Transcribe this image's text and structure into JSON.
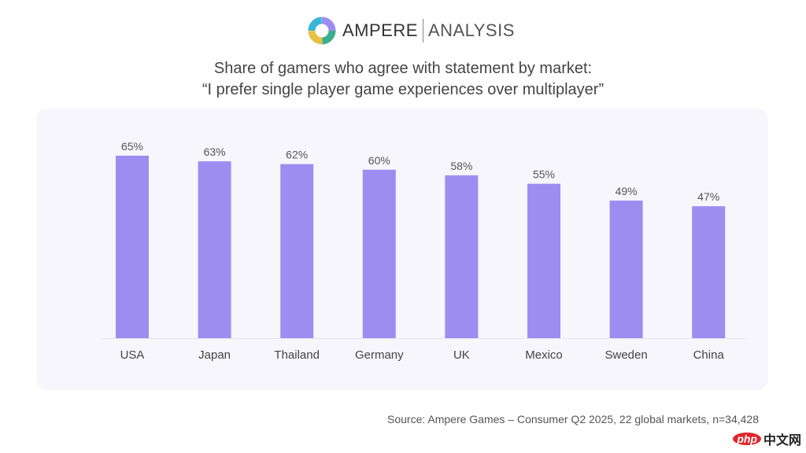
{
  "logo": {
    "brand": "AMPERE",
    "division": "ANALYSIS"
  },
  "title": {
    "line1": "Share of gamers who agree with statement by market:",
    "line2": "“I prefer single player game experiences over multiplayer”"
  },
  "source": "Source: Ampere Games – Consumer Q2 2025, 22 global markets, n=34,428",
  "watermark": {
    "brand": "php",
    "text": "中文网"
  },
  "colors": {
    "bar": "#9d8df1",
    "panel": "#f6f6fc"
  },
  "chart_data": {
    "type": "bar",
    "title": "Share of gamers who agree with statement by market: “I prefer single player game experiences over multiplayer”",
    "categories": [
      "USA",
      "Japan",
      "Thailand",
      "Germany",
      "UK",
      "Mexico",
      "Sweden",
      "China"
    ],
    "values": [
      65,
      63,
      62,
      60,
      58,
      55,
      49,
      47
    ],
    "labels": [
      "65%",
      "63%",
      "62%",
      "60%",
      "58%",
      "55%",
      "49%",
      "47%"
    ],
    "unit": "%",
    "ylim": [
      0,
      70
    ],
    "grid": false,
    "legend": "none"
  }
}
